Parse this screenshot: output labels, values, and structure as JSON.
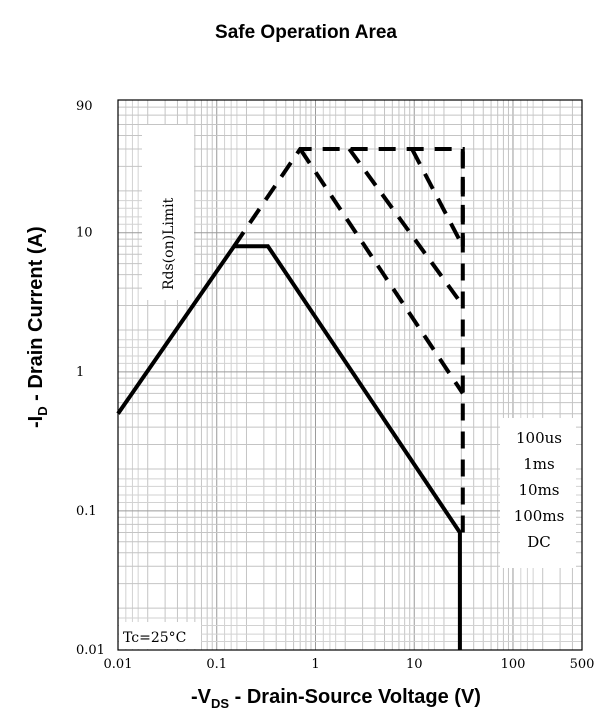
{
  "chart_data": {
    "type": "line",
    "title": "Safe Operation Area",
    "xlabel": {
      "prefix": "-V",
      "sub": "DS",
      "suffix": " - Drain-Source Voltage (V)"
    },
    "ylabel": {
      "prefix": "-I",
      "sub": "D",
      "suffix": " - Drain Current (A)"
    },
    "xscale": "log",
    "yscale": "log",
    "xlim": [
      0.01,
      500
    ],
    "ylim": [
      0.01,
      90
    ],
    "grid": true,
    "x_ticks": [
      {
        "value": 0.01,
        "label": "0.01"
      },
      {
        "value": 0.1,
        "label": "0.1"
      },
      {
        "value": 1,
        "label": "1"
      },
      {
        "value": 10,
        "label": "10"
      },
      {
        "value": 100,
        "label": "100"
      },
      {
        "value": 500,
        "label": "500"
      }
    ],
    "y_ticks": [
      {
        "value": 0.01,
        "label": "0.01"
      },
      {
        "value": 0.1,
        "label": "0.1"
      },
      {
        "value": 1,
        "label": "1"
      },
      {
        "value": 10,
        "label": "10"
      },
      {
        "value": 90,
        "label": "90"
      }
    ],
    "series": [
      {
        "style": "dashed",
        "x": [
          0.15,
          0.7,
          31,
          31
        ],
        "y": [
          8,
          40,
          40,
          8
        ]
      },
      {
        "style": "dashed",
        "x": [
          2.2,
          31
        ],
        "y": [
          40,
          3
        ]
      },
      {
        "style": "dashed",
        "x": [
          0.7,
          31
        ],
        "y": [
          40,
          0.7
        ]
      },
      {
        "style": "dashed",
        "x": [
          9.5,
          31
        ],
        "y": [
          40,
          8
        ]
      },
      {
        "style": "dashed",
        "x": [
          31,
          31
        ],
        "y": [
          0.07,
          40
        ]
      },
      {
        "style": "solid",
        "x": [
          0.01,
          0.15,
          0.33,
          29,
          29
        ],
        "y": [
          0.5,
          8,
          8,
          0.07,
          0.01
        ]
      }
    ],
    "annotations": {
      "rds_limit": "Rds(on)Limit",
      "legend": [
        "100us",
        "1ms",
        "10ms",
        "100ms",
        "DC"
      ],
      "condition": "Tc=25°C"
    }
  }
}
